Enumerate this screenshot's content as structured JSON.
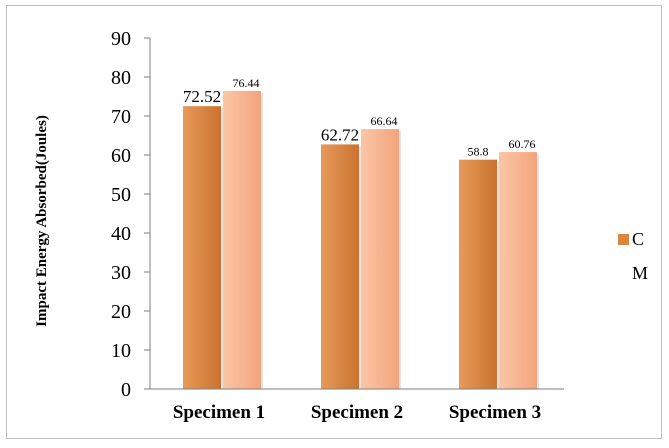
{
  "chart_data": {
    "type": "bar",
    "title": "",
    "xlabel": "",
    "ylabel": "Impact Energy Absorbed(Joules)",
    "categories": [
      "Specimen 1",
      "Specimen 2",
      "Specimen 3"
    ],
    "series": [
      {
        "name": "C",
        "values": [
          72.52,
          62.72,
          58.8
        ],
        "color": "#d9843f"
      },
      {
        "name": "M",
        "values": [
          76.44,
          66.64,
          60.76
        ],
        "color": "#f7b28e"
      }
    ],
    "ylim": [
      0,
      90
    ],
    "yticks": [
      0,
      10,
      20,
      30,
      40,
      50,
      60,
      70,
      80,
      90
    ],
    "grid": false,
    "legend_position": "right",
    "data_labels": [
      [
        "72.52",
        "76.44"
      ],
      [
        "62.72",
        "66.64"
      ],
      [
        "58.8",
        "60.76"
      ]
    ]
  }
}
